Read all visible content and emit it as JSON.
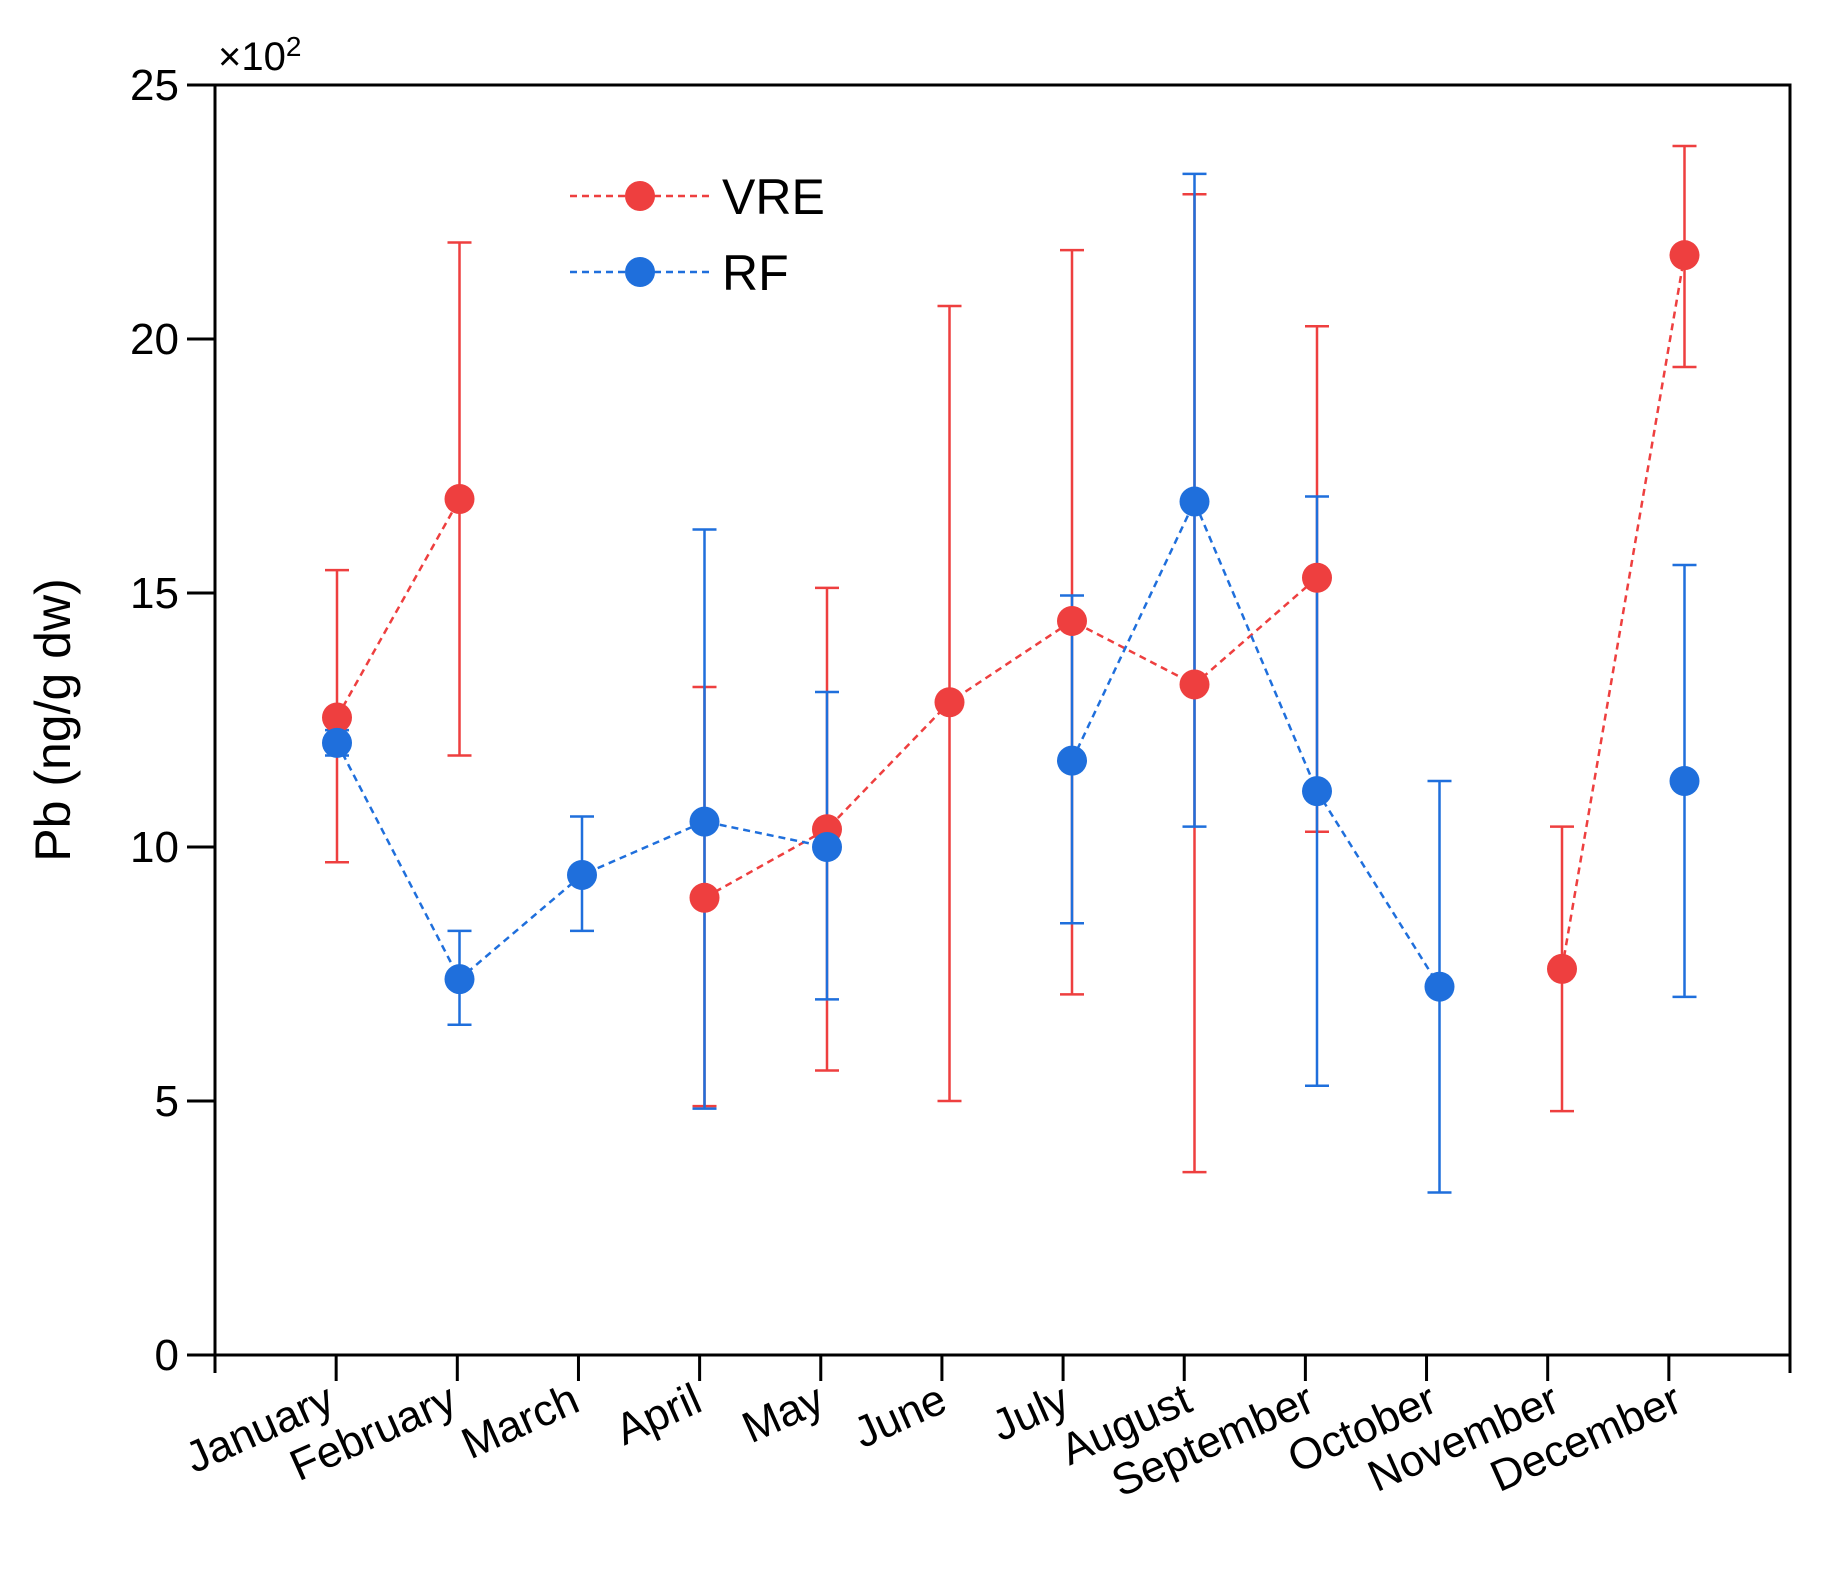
{
  "chart_data": {
    "type": "line",
    "title": "",
    "xlabel": "",
    "ylabel": "Pb (ng/g dw)",
    "y_multiplier_base": "×10",
    "y_multiplier_exp": "2",
    "ylim": [
      0,
      25
    ],
    "yticks": [
      0,
      5,
      10,
      15,
      20,
      25
    ],
    "grid": false,
    "legend_position": "top-center",
    "categories": [
      "January",
      "February",
      "March",
      "April",
      "May",
      "June",
      "July",
      "August",
      "September",
      "October",
      "November",
      "December"
    ],
    "series": [
      {
        "name": "VRE",
        "color": "#ee3f3f",
        "marker": "circle",
        "line_style": "dashed",
        "values": [
          12.55,
          16.85,
          null,
          9.0,
          10.35,
          12.85,
          14.45,
          13.2,
          15.3,
          null,
          7.6,
          21.65
        ],
        "err_upper": [
          15.45,
          21.9,
          null,
          13.15,
          15.1,
          20.65,
          21.75,
          22.85,
          20.25,
          null,
          10.4,
          23.8
        ],
        "err_lower": [
          9.7,
          11.8,
          null,
          4.9,
          5.6,
          5.0,
          7.1,
          3.6,
          10.3,
          null,
          4.8,
          19.45
        ],
        "segments": [
          [
            0,
            1
          ],
          [
            3,
            8
          ],
          [
            10,
            11
          ]
        ]
      },
      {
        "name": "RF",
        "color": "#1f6fdc",
        "marker": "circle",
        "line_style": "dashed",
        "values": [
          12.05,
          7.4,
          9.45,
          10.5,
          10.0,
          null,
          11.7,
          16.8,
          11.1,
          7.25,
          null,
          11.3
        ],
        "err_upper": [
          12.3,
          8.35,
          10.6,
          16.25,
          13.05,
          null,
          14.95,
          23.25,
          16.9,
          11.3,
          null,
          15.55
        ],
        "err_lower": [
          11.8,
          6.5,
          8.35,
          4.85,
          7.0,
          null,
          8.5,
          10.4,
          5.3,
          3.2,
          null,
          7.05
        ],
        "segments": [
          [
            0,
            4
          ],
          [
            6,
            9
          ]
        ]
      }
    ]
  }
}
